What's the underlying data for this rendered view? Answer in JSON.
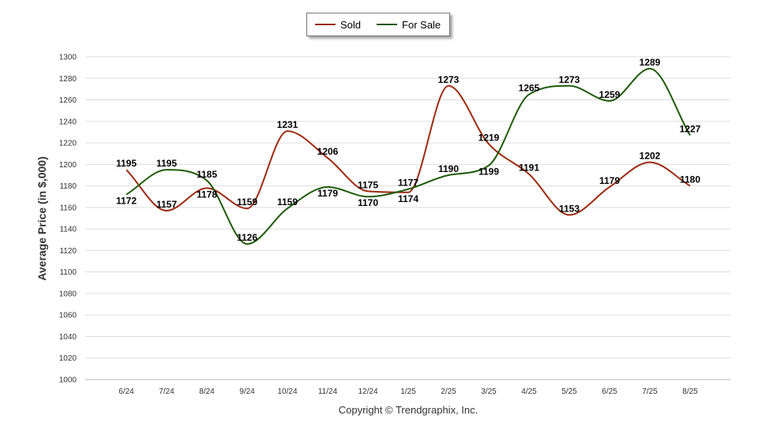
{
  "chart_data": {
    "type": "line",
    "ylabel": "Average Price (in $,000)",
    "xlabel": "",
    "ylim": [
      1000,
      1300
    ],
    "ytick_step": 20,
    "grid": true,
    "legend_position": "top-center",
    "categories": [
      "6/24",
      "7/24",
      "8/24",
      "9/24",
      "10/24",
      "11/24",
      "12/24",
      "1/25",
      "2/25",
      "3/25",
      "4/25",
      "5/25",
      "6/25",
      "7/25",
      "8/25"
    ],
    "series": [
      {
        "name": "Sold",
        "color": "#9c2a10",
        "values": [
          1195,
          1157,
          1178,
          1159,
          1231,
          1206,
          1175,
          1174,
          1273,
          1219,
          1191,
          1153,
          1179,
          1202,
          1180
        ]
      },
      {
        "name": "For Sale",
        "color": "#1f5a0a",
        "values": [
          1172,
          1195,
          1185,
          1126,
          1159,
          1179,
          1170,
          1177,
          1190,
          1199,
          1265,
          1273,
          1259,
          1289,
          1227
        ]
      }
    ]
  },
  "footer": {
    "copyright": "Copyright © Trendgraphix, Inc."
  }
}
